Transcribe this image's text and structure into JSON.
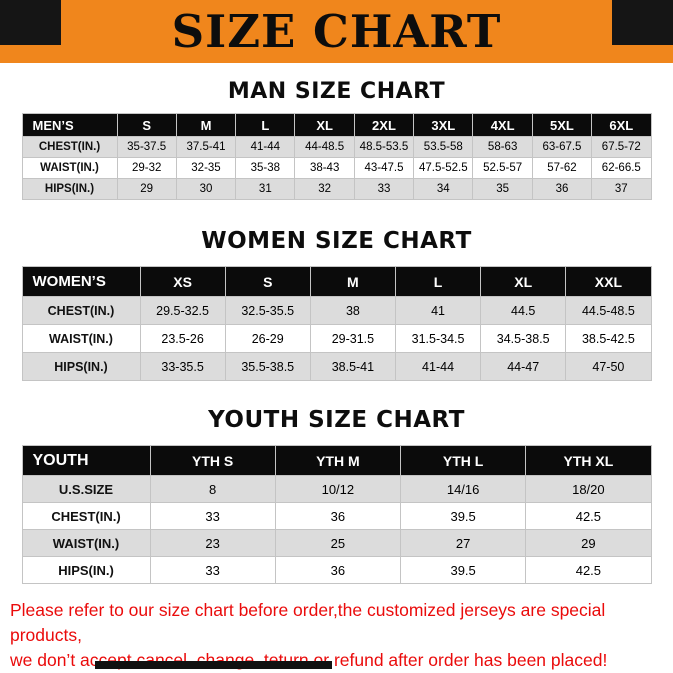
{
  "banner": {
    "title": "SIZE CHART"
  },
  "sections": [
    {
      "heading": "MAN SIZE CHART",
      "table": {
        "header": [
          "MEN’S",
          "S",
          "M",
          "L",
          "XL",
          "2XL",
          "3XL",
          "4XL",
          "5XL",
          "6XL"
        ],
        "rows": [
          [
            "CHEST(IN.)",
            "35-37.5",
            "37.5-41",
            "41-44",
            "44-48.5",
            "48.5-53.5",
            "53.5-58",
            "58-63",
            "63-67.5",
            "67.5-72"
          ],
          [
            "WAIST(IN.)",
            "29-32",
            "32-35",
            "35-38",
            "38-43",
            "43-47.5",
            "47.5-52.5",
            "52.5-57",
            "57-62",
            "62-66.5"
          ],
          [
            "HIPS(IN.)",
            "29",
            "30",
            "31",
            "32",
            "33",
            "34",
            "35",
            "36",
            "37"
          ]
        ]
      }
    },
    {
      "heading": "WOMEN SIZE CHART",
      "table": {
        "header": [
          "WOMEN’S",
          "XS",
          "S",
          "M",
          "L",
          "XL",
          "XXL"
        ],
        "rows": [
          [
            "CHEST(IN.)",
            "29.5-32.5",
            "32.5-35.5",
            "38",
            "41",
            "44.5",
            "44.5-48.5"
          ],
          [
            "WAIST(IN.)",
            "23.5-26",
            "26-29",
            "29-31.5",
            "31.5-34.5",
            "34.5-38.5",
            "38.5-42.5"
          ],
          [
            "HIPS(IN.)",
            "33-35.5",
            "35.5-38.5",
            "38.5-41",
            "41-44",
            "44-47",
            "47-50"
          ]
        ]
      }
    },
    {
      "heading": "YOUTH SIZE CHART",
      "table": {
        "header": [
          "YOUTH",
          "YTH S",
          "YTH M",
          "YTH L",
          "YTH XL"
        ],
        "rows": [
          [
            "U.S.SIZE",
            "8",
            "10/12",
            "14/16",
            "18/20"
          ],
          [
            "CHEST(IN.)",
            "33",
            "36",
            "39.5",
            "42.5"
          ],
          [
            "WAIST(IN.)",
            "23",
            "25",
            "27",
            "29"
          ],
          [
            "HIPS(IN.)",
            "33",
            "36",
            "39.5",
            "42.5"
          ]
        ]
      }
    }
  ],
  "footer": {
    "line1": "Please refer to our size chart before order,the customized jerseys are special products,",
    "line2": "we don’t accept cancel, change, teturn or refund after order has been placed!"
  },
  "colors": {
    "banner_orange": "#F0861C",
    "corner_black": "#151515",
    "table_header_black": "#0B0B0B",
    "row_alt_gray": "#DCDCDC",
    "footer_red": "#EA0B0B"
  }
}
